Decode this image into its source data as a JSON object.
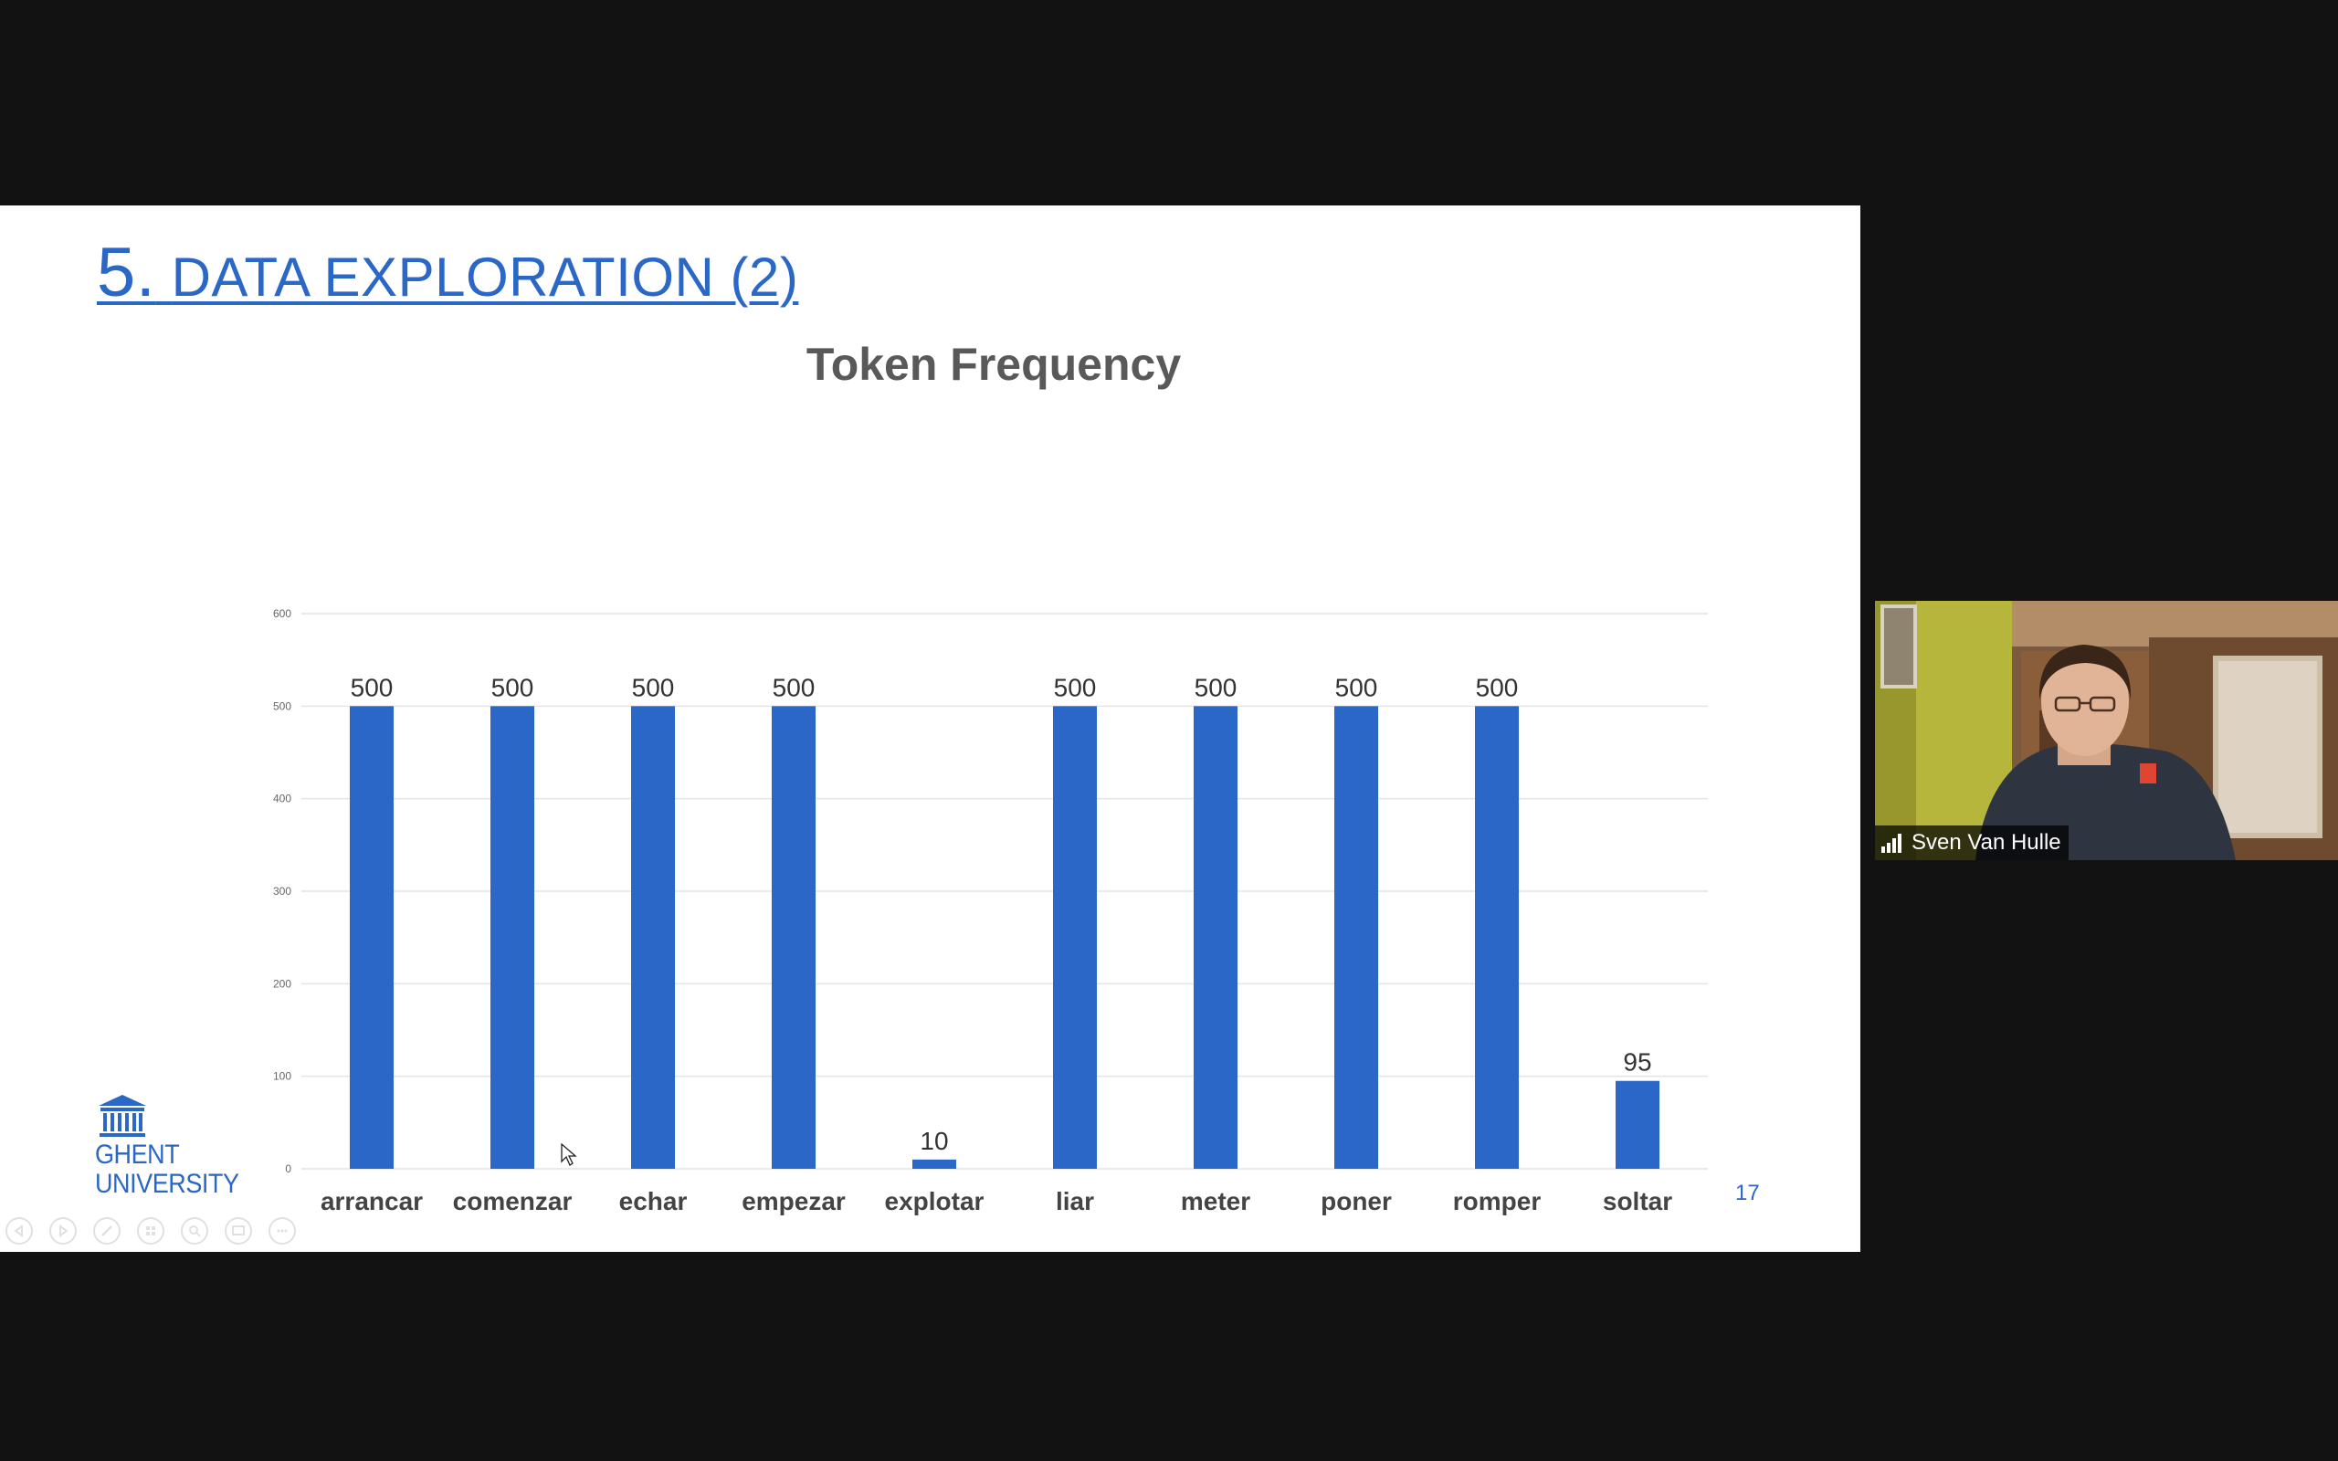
{
  "slide": {
    "title_number": "5.",
    "title_text": "DATA EXPLORATION (2)",
    "page_number": "17",
    "logo_line1": "GHENT",
    "logo_line2": "UNIVERSITY"
  },
  "chart_data": {
    "type": "bar",
    "title": "Token Frequency",
    "categories": [
      "arrancar",
      "comenzar",
      "echar",
      "empezar",
      "explotar",
      "liar",
      "meter",
      "poner",
      "romper",
      "soltar"
    ],
    "values": [
      500,
      500,
      500,
      500,
      10,
      500,
      500,
      500,
      500,
      95
    ],
    "data_labels": [
      "500",
      "500",
      "500",
      "500",
      "10",
      "500",
      "500",
      "500",
      "500",
      "95"
    ],
    "ylim": [
      0,
      600
    ],
    "yticks": [
      0,
      100,
      200,
      300,
      400,
      500,
      600
    ],
    "grid": true,
    "bar_color": "#2a67c6"
  },
  "presenter_toolbar": {
    "icons": [
      "previous-slide-icon",
      "next-slide-icon",
      "pen-icon",
      "slides-grid-icon",
      "zoom-icon",
      "screen-icon",
      "more-options-icon"
    ]
  },
  "video": {
    "participant_name": "Sven Van Hulle",
    "signal_icon": "signal-strength-icon"
  }
}
